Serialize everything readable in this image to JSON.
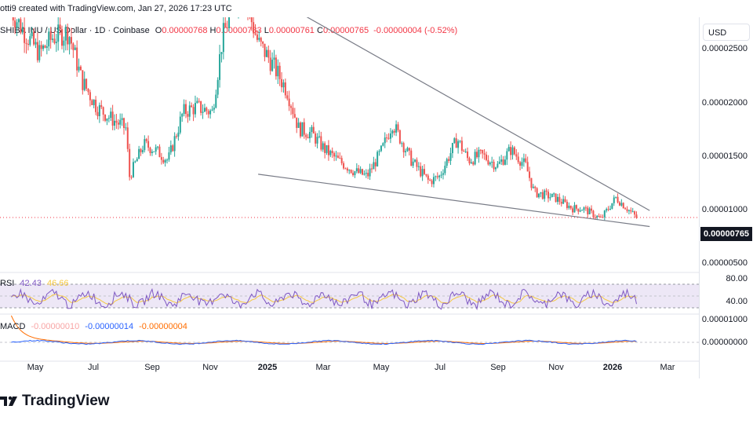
{
  "header": {
    "credit": "otti9 created with TradingView.com, Jan 27, 2026 17:23 UTC",
    "symbol": "SHIBA INU / US Dollar · 1D · Coinbase",
    "ohlc_o_label": "O",
    "ohlc_o": "0.00000768",
    "ohlc_h_label": "H",
    "ohlc_h": "0.00000783",
    "ohlc_l_label": "L",
    "ohlc_l": "0.00000761",
    "ohlc_c_label": "C",
    "ohlc_c": "0.00000765",
    "change": "-0.00000004 (-0.52%)"
  },
  "currency": "USD",
  "current_price": "0.00000765",
  "price_ticks": [
    "0.00002500",
    "0.00002000",
    "0.00001500",
    "0.00001000",
    "0.00000500"
  ],
  "rsi": {
    "label": "RSI",
    "value1": "42.43",
    "value2": "46.66",
    "ticks": [
      "80.00",
      "40.00"
    ]
  },
  "macd": {
    "label": "MACD",
    "value1": "-0.00000010",
    "value2": "-0.00000014",
    "value3": "-0.00000004",
    "ticks": [
      "0.00001000",
      "0.00000000"
    ]
  },
  "x_ticks": [
    "May",
    "Jul",
    "Sep",
    "Nov",
    "2025",
    "Mar",
    "May",
    "Jul",
    "Sep",
    "Nov",
    "2026",
    "Mar"
  ],
  "brand": "TradingView",
  "colors": {
    "up": "#26a69a",
    "down": "#ef5350",
    "rsi_line": "#7e57c2",
    "rsi_ma": "#f5c842",
    "rsi_band": "#ede7f6",
    "macd_line": "#2962ff",
    "signal_line": "#ff6d00",
    "trendline": "#787b86",
    "negative": "#f23645"
  },
  "chart_data": {
    "type": "candlestick",
    "title": "SHIBA INU / US Dollar · 1D · Coinbase",
    "x_range": [
      "2024-04",
      "2026-03"
    ],
    "y_range": [
      4.5e-06,
      2.75e-05
    ],
    "series": [
      {
        "date": "2024-04-01",
        "close": 2.7e-05
      },
      {
        "date": "2024-04-15",
        "close": 2.5e-05
      },
      {
        "date": "2024-05-01",
        "close": 2.3e-05
      },
      {
        "date": "2024-05-15",
        "close": 2.45e-05
      },
      {
        "date": "2024-06-01",
        "close": 2.5e-05
      },
      {
        "date": "2024-06-15",
        "close": 2.05e-05
      },
      {
        "date": "2024-07-01",
        "close": 1.8e-05
      },
      {
        "date": "2024-07-15",
        "close": 1.7e-05
      },
      {
        "date": "2024-08-01",
        "close": 1.6e-05
      },
      {
        "date": "2024-08-05",
        "close": 1.15e-05
      },
      {
        "date": "2024-08-20",
        "close": 1.45e-05
      },
      {
        "date": "2024-09-01",
        "close": 1.4e-05
      },
      {
        "date": "2024-09-15",
        "close": 1.3e-05
      },
      {
        "date": "2024-10-01",
        "close": 1.75e-05
      },
      {
        "date": "2024-10-15",
        "close": 1.8e-05
      },
      {
        "date": "2024-11-01",
        "close": 1.75e-05
      },
      {
        "date": "2024-11-12",
        "close": 2.45e-05
      },
      {
        "date": "2024-12-01",
        "close": 2.95e-05
      },
      {
        "date": "2024-12-20",
        "close": 2.4e-05
      },
      {
        "date": "2025-01-01",
        "close": 2.25e-05
      },
      {
        "date": "2025-01-20",
        "close": 1.95e-05
      },
      {
        "date": "2025-02-01",
        "close": 1.6e-05
      },
      {
        "date": "2025-02-15",
        "close": 1.55e-05
      },
      {
        "date": "2025-03-01",
        "close": 1.4e-05
      },
      {
        "date": "2025-03-15",
        "close": 1.3e-05
      },
      {
        "date": "2025-04-01",
        "close": 1.2e-05
      },
      {
        "date": "2025-04-15",
        "close": 1.15e-05
      },
      {
        "date": "2025-05-01",
        "close": 1.4e-05
      },
      {
        "date": "2025-05-12",
        "close": 1.65e-05
      },
      {
        "date": "2025-06-01",
        "close": 1.3e-05
      },
      {
        "date": "2025-06-20",
        "close": 1.1e-05
      },
      {
        "date": "2025-07-01",
        "close": 1.15e-05
      },
      {
        "date": "2025-07-20",
        "close": 1.5e-05
      },
      {
        "date": "2025-08-01",
        "close": 1.3e-05
      },
      {
        "date": "2025-08-15",
        "close": 1.35e-05
      },
      {
        "date": "2025-09-01",
        "close": 1.25e-05
      },
      {
        "date": "2025-09-15",
        "close": 1.4e-05
      },
      {
        "date": "2025-10-01",
        "close": 1.25e-05
      },
      {
        "date": "2025-10-10",
        "close": 1e-05
      },
      {
        "date": "2025-11-01",
        "close": 9.5e-06
      },
      {
        "date": "2025-11-20",
        "close": 8.5e-06
      },
      {
        "date": "2025-12-01",
        "close": 8.5e-06
      },
      {
        "date": "2025-12-20",
        "close": 7.5e-06
      },
      {
        "date": "2026-01-05",
        "close": 9.5e-06
      },
      {
        "date": "2026-01-27",
        "close": 7.65e-06
      }
    ],
    "trendlines": [
      {
        "name": "upper",
        "from": {
          "date": "2024-12-20",
          "value": 2.9e-05
        },
        "to": {
          "date": "2026-02-10",
          "value": 8.3e-06
        }
      },
      {
        "name": "lower",
        "from": {
          "date": "2024-12-20",
          "value": 1.17e-05
        },
        "to": {
          "date": "2026-02-10",
          "value": 6.8e-06
        }
      }
    ]
  }
}
